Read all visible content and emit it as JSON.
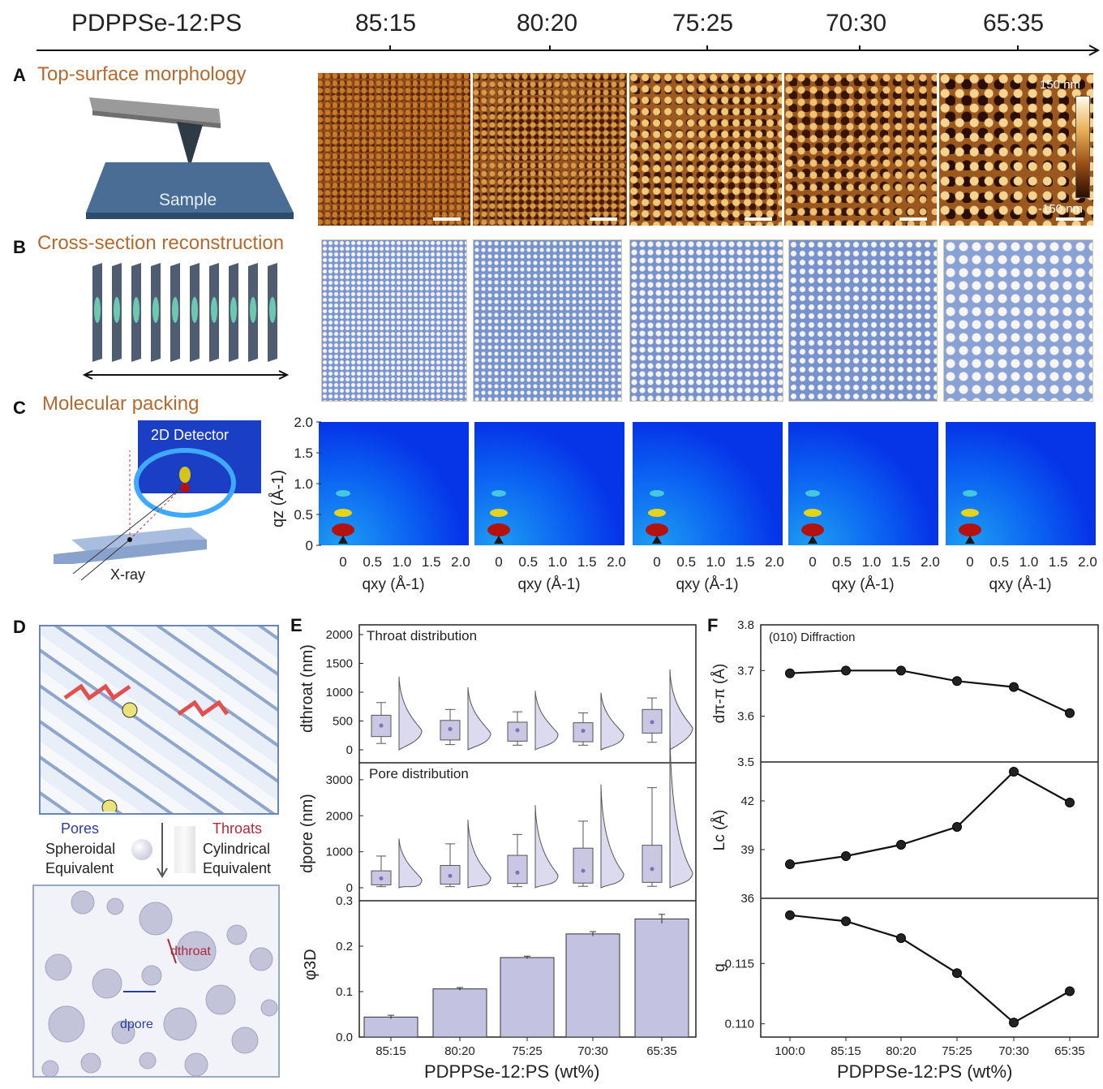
{
  "header": {
    "label": "PDPPSe-12:PS",
    "ratios": [
      "85:15",
      "80:20",
      "75:25",
      "70:30",
      "65:35"
    ]
  },
  "panelA": {
    "letter": "A",
    "title": "Top-surface morphology",
    "sample_label": "Sample",
    "colorbar_max": "150 nm",
    "colorbar_min": "-150 nm"
  },
  "panelB": {
    "letter": "B",
    "title": "Cross-section reconstruction"
  },
  "panelC": {
    "letter": "C",
    "title": "Molecular packing",
    "detector_label": "2D Detector",
    "xray_label": "X-ray",
    "y_ticks": [
      "2.0",
      "1.5",
      "1.0",
      "0.5",
      "0"
    ],
    "x_ticks": [
      "0",
      "0.5",
      "1.0",
      "1.5",
      "2.0"
    ],
    "ylabel": "qz (Å-1)",
    "xlabel": "qxy (Å-1)"
  },
  "panelD": {
    "letter": "D",
    "pores_label": "Pores",
    "spheroidal": "Spheroidal",
    "equivalent1": "Equivalent",
    "throats_label": "Throats",
    "cylindrical": "Cylindrical",
    "equivalent2": "Equivalent",
    "dthroat": "dthroat",
    "dpore": "dpore"
  },
  "panelE": {
    "letter": "E",
    "throat_title": "Throat distribution",
    "pore_title": "Pore distribution",
    "throat_ylabel": "dthroat (nm)",
    "pore_ylabel": "dpore (nm)",
    "phi_ylabel": "φ3D",
    "xlabel": "PDPPSe-12:PS (wt%)"
  },
  "panelF": {
    "letter": "F",
    "annotation": "(010) Diffraction",
    "xlabel": "PDPPSe-12:PS (wt%)"
  },
  "chart_data": [
    {
      "type": "box",
      "panel": "E-top",
      "title": "Throat distribution",
      "categories": [
        "85:15",
        "80:20",
        "75:25",
        "70:30",
        "65:35"
      ],
      "ylabel": "dthroat (nm)",
      "ylim": [
        0,
        2000
      ],
      "yticks": [
        "0",
        "500",
        "1000",
        "1500",
        "2000"
      ],
      "q1": [
        230,
        170,
        150,
        140,
        290
      ],
      "median": [
        420,
        360,
        340,
        330,
        480
      ],
      "q3": [
        600,
        510,
        480,
        470,
        700
      ],
      "whisker_low": [
        110,
        90,
        80,
        80,
        130
      ],
      "whisker_high": [
        820,
        700,
        660,
        640,
        900
      ]
    },
    {
      "type": "box",
      "panel": "E-middle",
      "title": "Pore distribution",
      "categories": [
        "85:15",
        "80:20",
        "75:25",
        "70:30",
        "65:35"
      ],
      "ylabel": "dpore (nm)",
      "ylim": [
        0,
        3200
      ],
      "yticks": [
        "0",
        "1000",
        "2000",
        "3000"
      ],
      "q1": [
        80,
        100,
        120,
        130,
        150
      ],
      "median": [
        260,
        330,
        420,
        470,
        520
      ],
      "q3": [
        470,
        620,
        900,
        1100,
        1180
      ],
      "whisker_low": [
        30,
        30,
        30,
        40,
        40
      ],
      "whisker_high": [
        880,
        1220,
        1480,
        1850,
        2780
      ]
    },
    {
      "type": "bar",
      "panel": "E-bottom",
      "categories": [
        "85:15",
        "80:20",
        "75:25",
        "70:30",
        "65:35"
      ],
      "values": [
        0.044,
        0.106,
        0.175,
        0.227,
        0.26
      ],
      "errors": [
        0.004,
        0.003,
        0.003,
        0.005,
        0.01
      ],
      "ylabel": "φ3D",
      "ylim": [
        0,
        0.3
      ],
      "yticks": [
        "0.0",
        "0.1",
        "0.2",
        "0.3"
      ],
      "xlabel": "PDPPSe-12:PS (wt%)"
    },
    {
      "type": "line",
      "panel": "F-top",
      "categories": [
        "100:0",
        "85:15",
        "80:20",
        "75:25",
        "70:30",
        "65:35"
      ],
      "values": [
        3.694,
        3.7,
        3.7,
        3.677,
        3.664,
        3.607
      ],
      "ylabel": "dπ-π (Å)",
      "ylim": [
        3.5,
        3.8
      ],
      "yticks": [
        "3.5",
        "3.6",
        "3.7",
        "3.8"
      ]
    },
    {
      "type": "line",
      "panel": "F-middle",
      "categories": [
        "100:0",
        "85:15",
        "80:20",
        "75:25",
        "70:30",
        "65:35"
      ],
      "values": [
        38.1,
        38.6,
        39.3,
        40.4,
        43.8,
        41.9
      ],
      "ylabel": "Lc (Å)",
      "ylim": [
        36,
        44.4
      ],
      "yticks": [
        "36",
        "39",
        "42"
      ]
    },
    {
      "type": "line",
      "panel": "F-bottom",
      "categories": [
        "100:0",
        "85:15",
        "80:20",
        "75:25",
        "70:30",
        "65:35"
      ],
      "values": [
        0.119,
        0.1185,
        0.1171,
        0.1142,
        0.1101,
        0.1127
      ],
      "ylabel": "g",
      "ylim": [
        0.1089,
        0.1204
      ],
      "yticks": [
        "0.110",
        "0.115"
      ],
      "xlabel": "PDPPSe-12:PS (wt%)"
    }
  ]
}
